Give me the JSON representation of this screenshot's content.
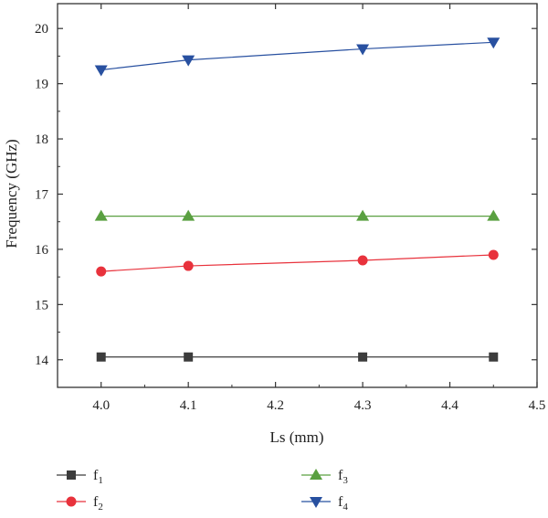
{
  "chart_data": {
    "type": "line",
    "title": "",
    "xlabel": "Ls (mm)",
    "ylabel": "Frequency (GHz)",
    "xlim": [
      3.95,
      4.5
    ],
    "ylim": [
      13.5,
      20.45
    ],
    "xticks": [
      4.0,
      4.1,
      4.2,
      4.3,
      4.4,
      4.5
    ],
    "xtick_labels": [
      "4.0",
      "4.1",
      "4.2",
      "4.3",
      "4.4",
      "4.5"
    ],
    "yticks": [
      14,
      15,
      16,
      17,
      18,
      19,
      20
    ],
    "ytick_labels": [
      "14",
      "15",
      "16",
      "17",
      "18",
      "19",
      "20"
    ],
    "grid": false,
    "legend_position": "bottom",
    "x": [
      4.0,
      4.1,
      4.3,
      4.45
    ],
    "series": [
      {
        "name": "f",
        "sub": "1",
        "color": "#3c3c3c",
        "marker": "square",
        "values": [
          14.05,
          14.05,
          14.05,
          14.05
        ]
      },
      {
        "name": "f",
        "sub": "2",
        "color": "#e8323c",
        "marker": "circle",
        "values": [
          15.6,
          15.7,
          15.8,
          15.9
        ]
      },
      {
        "name": "f",
        "sub": "3",
        "color": "#5aa041",
        "marker": "triangle-up",
        "values": [
          16.6,
          16.6,
          16.6,
          16.6
        ]
      },
      {
        "name": "f",
        "sub": "4",
        "color": "#2850a0",
        "marker": "triangle-down",
        "values": [
          19.25,
          19.43,
          19.63,
          19.75
        ]
      }
    ]
  }
}
